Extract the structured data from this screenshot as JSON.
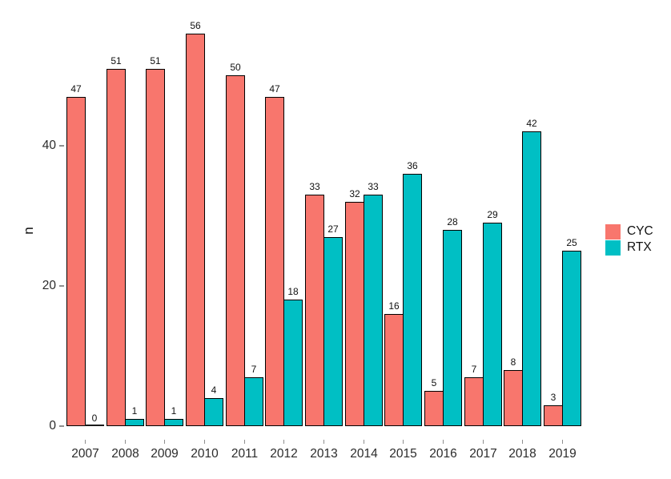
{
  "figure": {
    "ylabel": "n",
    "legend": {
      "items": [
        {
          "label": "CYC",
          "color": "#F8766D"
        },
        {
          "label": "RTX",
          "color": "#00BFC4"
        }
      ]
    }
  },
  "chart_data": {
    "type": "bar",
    "title": "",
    "xlabel": "",
    "ylabel": "n",
    "categories": [
      "2007",
      "2008",
      "2009",
      "2010",
      "2011",
      "2012",
      "2013",
      "2014",
      "2015",
      "2016",
      "2017",
      "2018",
      "2019"
    ],
    "series": [
      {
        "name": "CYC",
        "color": "#F8766D",
        "values": [
          47,
          51,
          51,
          56,
          50,
          47,
          33,
          32,
          16,
          5,
          7,
          8,
          3
        ]
      },
      {
        "name": "RTX",
        "color": "#00BFC4",
        "values": [
          0,
          1,
          1,
          4,
          7,
          18,
          27,
          33,
          36,
          28,
          29,
          42,
          25
        ]
      }
    ],
    "bar_labels": true,
    "bar_outline_color": "#000000",
    "yticks": [
      0,
      20,
      40
    ],
    "ylim": [
      0,
      59
    ],
    "grid": false,
    "axis_lines": false,
    "legend_position": "right"
  }
}
